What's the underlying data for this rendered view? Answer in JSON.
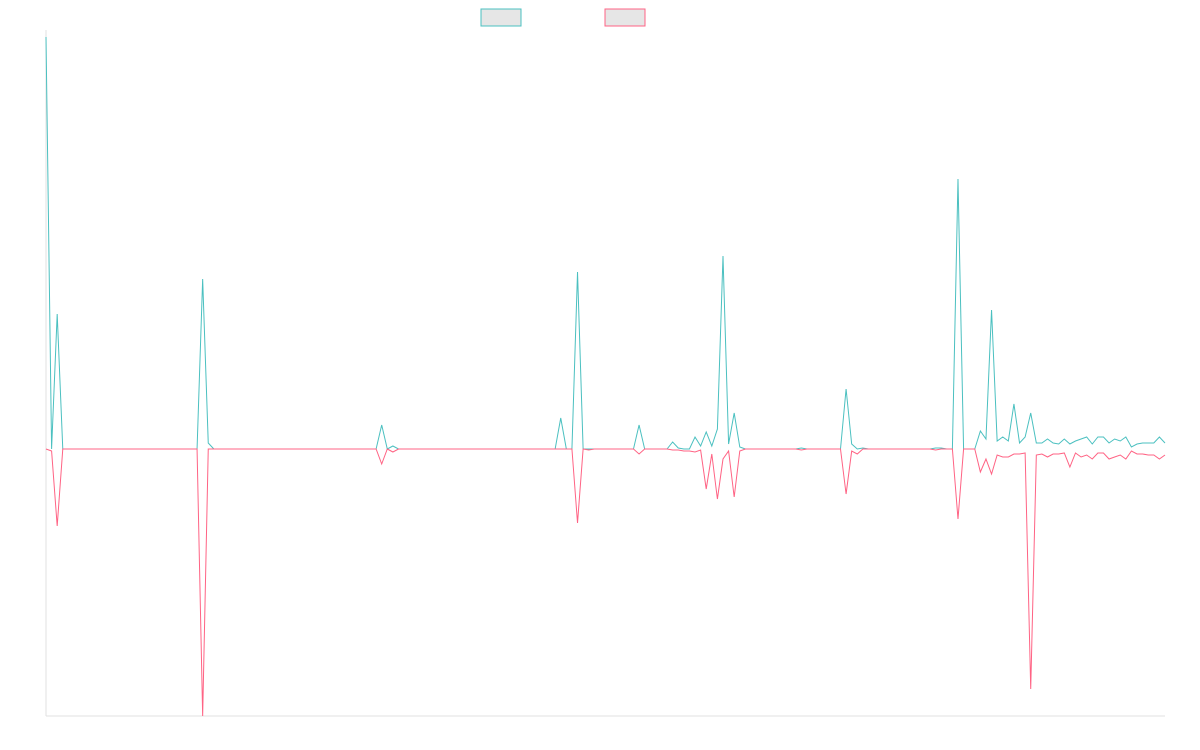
{
  "chart_data": {
    "type": "line",
    "categories": [
      null,
      null,
      null,
      null,
      null,
      null,
      null,
      null,
      null,
      null,
      null,
      null,
      null,
      null,
      null,
      null,
      null,
      null,
      null,
      null,
      null,
      null,
      null,
      null,
      null,
      null,
      null,
      null,
      null,
      null,
      null,
      null,
      null,
      null,
      null,
      null,
      null,
      null,
      null,
      null,
      null,
      null,
      null,
      null,
      null,
      null,
      null,
      null,
      null,
      null,
      null,
      null,
      null,
      null,
      null,
      null,
      null,
      null,
      null,
      null,
      null,
      null,
      null,
      null,
      null,
      null,
      null,
      null,
      null,
      null,
      null,
      null,
      null,
      null,
      null,
      null,
      null,
      null,
      null,
      null,
      null,
      null,
      null,
      null,
      null,
      null,
      null,
      null,
      null,
      null,
      null,
      null,
      null,
      null,
      null,
      null,
      null,
      null,
      null,
      null,
      null,
      null,
      null,
      null,
      null,
      null,
      null,
      null,
      null,
      null,
      null,
      null,
      null,
      null,
      null,
      null,
      null,
      null,
      null,
      null,
      null,
      null,
      null,
      null,
      null,
      null,
      null,
      null,
      null,
      null,
      null,
      null,
      null,
      null,
      null,
      null,
      null,
      null,
      null,
      null,
      null,
      null,
      null,
      null,
      null,
      null,
      null,
      null,
      null,
      null,
      null,
      null,
      null,
      null,
      null,
      null,
      null,
      null,
      null,
      null,
      null,
      null,
      null,
      null,
      null,
      null,
      null,
      null,
      null,
      null,
      null,
      null,
      null,
      null,
      null,
      null,
      null,
      null,
      null,
      null,
      null,
      null,
      null,
      null,
      null,
      null,
      null,
      null,
      null,
      null,
      null,
      null,
      null,
      null,
      null,
      null,
      null,
      null,
      null,
      null,
      null
    ],
    "series": [
      {
        "color": "#4bc0c0",
        "values": [
          412,
          0,
          135,
          0,
          0,
          0,
          0,
          0,
          0,
          0,
          0,
          0,
          0,
          0,
          0,
          0,
          0,
          0,
          0,
          0,
          0,
          0,
          0,
          0,
          0,
          0,
          0,
          0,
          170,
          6,
          0,
          0,
          0,
          0,
          0,
          0,
          0,
          0,
          0,
          0,
          0,
          0,
          0,
          0,
          0,
          0,
          0,
          0,
          0,
          0,
          0,
          0,
          0,
          0,
          0,
          0,
          0,
          0,
          0,
          0,
          24,
          0,
          3,
          0,
          0,
          0,
          0,
          0,
          0,
          0,
          0,
          0,
          0,
          0,
          0,
          0,
          0,
          0,
          0,
          0,
          0,
          0,
          0,
          0,
          0,
          0,
          0,
          0,
          0,
          0,
          0,
          0,
          31,
          0,
          0,
          177,
          0,
          0,
          0,
          0,
          0,
          0,
          0,
          0,
          0,
          0,
          24,
          0,
          0,
          0,
          0,
          0,
          7,
          1,
          0,
          0,
          12,
          3,
          17,
          3,
          20,
          193,
          5,
          36,
          2,
          0,
          0,
          0,
          0,
          0,
          0,
          0,
          0,
          0,
          0,
          1,
          0,
          0,
          0,
          0,
          0,
          0,
          0,
          60,
          5,
          0,
          1,
          0,
          0,
          0,
          0,
          0,
          0,
          0,
          0,
          0,
          0,
          0,
          0,
          1,
          1,
          0,
          0,
          270,
          0,
          0,
          0,
          18,
          10,
          139,
          8,
          12,
          8,
          45,
          6,
          12,
          36,
          6,
          6,
          10,
          6,
          5,
          10,
          5,
          8,
          10,
          12,
          5,
          12,
          12,
          6,
          10,
          8,
          12,
          2,
          5,
          6,
          6,
          6,
          12,
          6
        ]
      },
      {
        "color": "#ff6384",
        "values": [
          0,
          -2,
          -77,
          0,
          0,
          0,
          0,
          0,
          0,
          0,
          0,
          0,
          0,
          0,
          0,
          0,
          0,
          0,
          0,
          0,
          0,
          0,
          0,
          0,
          0,
          0,
          0,
          0,
          -267,
          0,
          0,
          0,
          0,
          0,
          0,
          0,
          0,
          0,
          0,
          0,
          0,
          0,
          0,
          0,
          0,
          0,
          0,
          0,
          0,
          0,
          0,
          0,
          0,
          0,
          0,
          0,
          0,
          0,
          0,
          0,
          -15,
          0,
          -3,
          0,
          0,
          0,
          0,
          0,
          0,
          0,
          0,
          0,
          0,
          0,
          0,
          0,
          0,
          0,
          0,
          0,
          0,
          0,
          0,
          0,
          0,
          0,
          0,
          0,
          0,
          0,
          0,
          0,
          0,
          0,
          0,
          -74,
          0,
          -1,
          0,
          0,
          0,
          0,
          0,
          0,
          0,
          0,
          -5,
          0,
          0,
          0,
          0,
          0,
          -1,
          -1,
          -2,
          -2,
          -3,
          -1,
          -40,
          -5,
          -50,
          -10,
          -2,
          -48,
          -2,
          0,
          0,
          0,
          0,
          0,
          0,
          0,
          0,
          0,
          0,
          -1,
          0,
          0,
          0,
          0,
          0,
          0,
          0,
          -45,
          -2,
          -5,
          0,
          0,
          0,
          0,
          0,
          0,
          0,
          0,
          0,
          0,
          0,
          0,
          0,
          -1,
          0,
          0,
          0,
          -70,
          0,
          0,
          0,
          -23,
          -10,
          -25,
          -6,
          -8,
          -8,
          -5,
          -5,
          -4,
          -240,
          -6,
          -5,
          -8,
          -5,
          -5,
          -4,
          -18,
          -4,
          -8,
          -6,
          -10,
          -4,
          -4,
          -10,
          -8,
          -6,
          -10,
          -2,
          -5,
          -5,
          -6,
          -6,
          -10,
          -6
        ]
      }
    ],
    "ylim": [
      -267,
      412
    ]
  }
}
